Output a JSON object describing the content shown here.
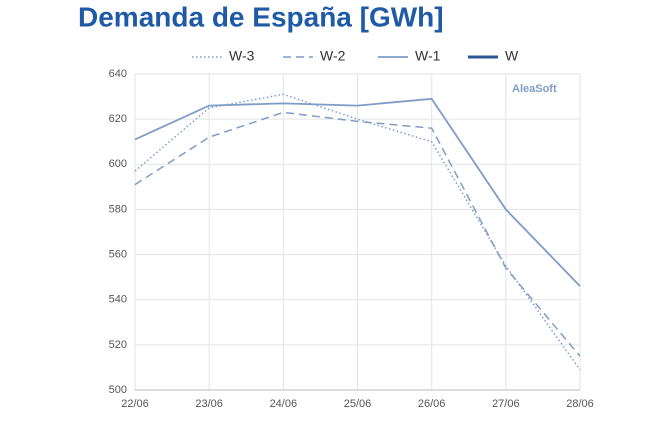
{
  "chart_data": {
    "type": "line",
    "title": "Demanda de España [GWh]",
    "watermark": "AleaSoft",
    "categories": [
      "22/06",
      "23/06",
      "24/06",
      "25/06",
      "26/06",
      "27/06",
      "28/06"
    ],
    "series": [
      {
        "name": "W-3",
        "color": "#7f9cc8",
        "dash": "dotted",
        "width": 1.5,
        "values": [
          597,
          625,
          631,
          620,
          610,
          555,
          509
        ]
      },
      {
        "name": "W-2",
        "color": "#7f9cc8",
        "dash": "dashed",
        "width": 1.5,
        "values": [
          591,
          612,
          623,
          619,
          616,
          554,
          515
        ]
      },
      {
        "name": "W-1",
        "color": "#7f9cc8",
        "dash": "solid",
        "width": 1.8,
        "values": [
          611,
          626,
          627,
          626,
          629,
          580,
          546
        ]
      },
      {
        "name": "W",
        "color": "#2f5597",
        "dash": "solid",
        "width": 3,
        "values": [
          null,
          null,
          null,
          null,
          null,
          null,
          null
        ]
      }
    ],
    "ylim": [
      500,
      640
    ],
    "yticks": [
      500,
      520,
      540,
      560,
      580,
      600,
      620,
      640
    ],
    "grid": true
  }
}
